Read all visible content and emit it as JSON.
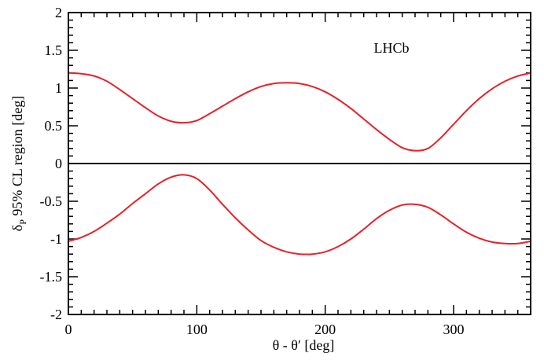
{
  "chart_data": {
    "type": "line",
    "title": "",
    "xlabel": "θ - θ′ [deg]",
    "ylabel_symbol": "δ",
    "ylabel_sub": "P",
    "ylabel_rest": " 95% CL region [deg]",
    "annotation": "LHCb",
    "xlim": [
      0,
      360
    ],
    "ylim": [
      -2,
      2
    ],
    "x_ticks": [
      0,
      100,
      200,
      300
    ],
    "y_ticks": [
      -2,
      -1.5,
      -1,
      -0.5,
      0,
      0.5,
      1,
      1.5,
      2
    ],
    "y_tick_labels": [
      "-2",
      "-1.5",
      "-1",
      "-0.5",
      "0",
      "0.5",
      "1",
      "1.5",
      "2"
    ],
    "x_tick_labels": [
      "0",
      "100",
      "200",
      "300"
    ],
    "hline": {
      "y": 0,
      "color": "#000000"
    },
    "grid": false,
    "series": [
      {
        "color": "#e8202a",
        "x": [
          0,
          10,
          20,
          30,
          40,
          50,
          60,
          70,
          80,
          90,
          100,
          110,
          120,
          130,
          140,
          150,
          160,
          170,
          180,
          190,
          200,
          210,
          220,
          230,
          240,
          250,
          260,
          270,
          280,
          290,
          300,
          310,
          320,
          330,
          340,
          350,
          360
        ],
        "values": [
          1.2,
          1.19,
          1.16,
          1.09,
          0.98,
          0.86,
          0.74,
          0.63,
          0.56,
          0.54,
          0.57,
          0.66,
          0.76,
          0.86,
          0.95,
          1.02,
          1.06,
          1.07,
          1.06,
          1.02,
          0.95,
          0.85,
          0.73,
          0.59,
          0.45,
          0.32,
          0.21,
          0.17,
          0.2,
          0.34,
          0.52,
          0.7,
          0.86,
          0.99,
          1.09,
          1.16,
          1.2
        ]
      },
      {
        "color": "#e8202a",
        "x": [
          0,
          10,
          20,
          30,
          40,
          50,
          60,
          70,
          80,
          90,
          100,
          110,
          120,
          130,
          140,
          150,
          160,
          170,
          180,
          190,
          200,
          210,
          220,
          230,
          240,
          250,
          260,
          270,
          280,
          290,
          300,
          310,
          320,
          330,
          340,
          350,
          360
        ],
        "values": [
          -1.03,
          -0.98,
          -0.9,
          -0.79,
          -0.67,
          -0.53,
          -0.4,
          -0.27,
          -0.18,
          -0.15,
          -0.2,
          -0.35,
          -0.54,
          -0.72,
          -0.88,
          -1.02,
          -1.11,
          -1.17,
          -1.2,
          -1.2,
          -1.17,
          -1.1,
          -1.0,
          -0.87,
          -0.73,
          -0.62,
          -0.55,
          -0.54,
          -0.58,
          -0.68,
          -0.8,
          -0.91,
          -0.99,
          -1.04,
          -1.06,
          -1.06,
          -1.03
        ]
      }
    ]
  }
}
